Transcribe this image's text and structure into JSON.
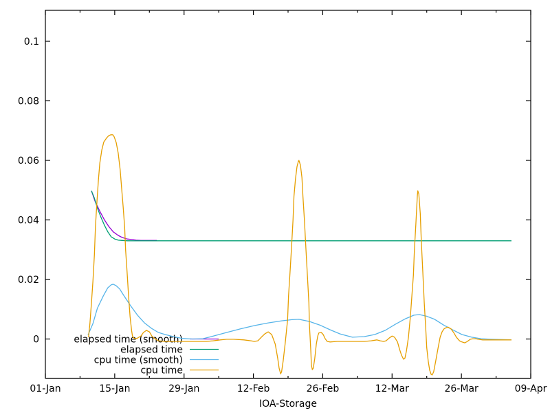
{
  "app": {
    "background": "#ffffff",
    "text_color": "#000000",
    "border_color": "#000000"
  },
  "chart_data": {
    "type": "line",
    "title": "",
    "xlabel": "IOA-Storage",
    "ylabel": "",
    "grid": false,
    "x_axis": {
      "unit": "date",
      "tick_labels": [
        "01-Jan",
        "15-Jan",
        "29-Jan",
        "12-Feb",
        "26-Feb",
        "12-Mar",
        "26-Mar",
        "09-Apr"
      ],
      "tick_days": [
        0,
        14,
        28,
        42,
        56,
        70,
        84,
        98
      ],
      "minor_tick_days": [
        7,
        21,
        35,
        49,
        63,
        77,
        91
      ],
      "range_days": [
        0,
        98
      ]
    },
    "y_axis": {
      "tick_labels": [
        "0",
        "0.02",
        "0.04",
        "0.06",
        "0.08",
        "0.1"
      ],
      "tick_values": [
        0,
        0.02,
        0.04,
        0.06,
        0.08,
        0.1
      ],
      "range": [
        -0.01318,
        0.1104
      ]
    },
    "legend": {
      "position": "inside-bottom-left",
      "entries": [
        "elapsed time (smooth)",
        "elapsed time",
        "cpu time (smooth)",
        "cpu time"
      ]
    },
    "series": [
      {
        "name": "elapsed time (smooth)",
        "color": "#9400D3",
        "points": [
          [
            9.3,
            0.0498
          ],
          [
            10.0,
            0.0464
          ],
          [
            11.0,
            0.0429
          ],
          [
            11.9,
            0.0401
          ],
          [
            12.8,
            0.0378
          ],
          [
            13.7,
            0.036
          ],
          [
            14.7,
            0.0348
          ],
          [
            15.5,
            0.0341
          ],
          [
            16.5,
            0.0336
          ],
          [
            17.5,
            0.0334
          ],
          [
            18.3,
            0.0332
          ],
          [
            19.3,
            0.0331
          ],
          [
            20.7,
            0.0331
          ],
          [
            22.5,
            0.0331
          ]
        ]
      },
      {
        "name": "elapsed time",
        "color": "#009E73",
        "points": [
          [
            9.3,
            0.0498
          ],
          [
            9.9,
            0.0473
          ],
          [
            10.5,
            0.044
          ],
          [
            11.2,
            0.041
          ],
          [
            11.9,
            0.0383
          ],
          [
            12.6,
            0.036
          ],
          [
            13.3,
            0.0343
          ],
          [
            14.0,
            0.0336
          ],
          [
            14.7,
            0.0332
          ],
          [
            15.5,
            0.0331
          ],
          [
            16.5,
            0.033
          ],
          [
            18.0,
            0.033
          ],
          [
            25.0,
            0.033
          ],
          [
            94.1,
            0.033
          ]
        ]
      },
      {
        "name": "cpu time (smooth)",
        "color": "#56B4E9",
        "points": [
          [
            8.6,
            0.0013
          ],
          [
            9.6,
            0.0052
          ],
          [
            10.5,
            0.0103
          ],
          [
            11.7,
            0.0145
          ],
          [
            12.6,
            0.0172
          ],
          [
            13.3,
            0.0182
          ],
          [
            13.7,
            0.0184
          ],
          [
            14.3,
            0.0179
          ],
          [
            15.0,
            0.0168
          ],
          [
            15.8,
            0.0147
          ],
          [
            17.2,
            0.0112
          ],
          [
            18.6,
            0.008
          ],
          [
            20.0,
            0.0054
          ],
          [
            21.4,
            0.0036
          ],
          [
            22.8,
            0.0022
          ],
          [
            24.2,
            0.0015
          ],
          [
            25.8,
            0.0008
          ],
          [
            27.6,
            0.0002
          ],
          [
            29.7,
            0.0
          ],
          [
            31.8,
            0.0001
          ],
          [
            33.9,
            0.001
          ],
          [
            36.6,
            0.0022
          ],
          [
            39.4,
            0.0034
          ],
          [
            42.2,
            0.0045
          ],
          [
            45.0,
            0.0054
          ],
          [
            47.7,
            0.0061
          ],
          [
            49.8,
            0.0065
          ],
          [
            51.2,
            0.0066
          ],
          [
            53.3,
            0.0059
          ],
          [
            55.4,
            0.0047
          ],
          [
            57.5,
            0.0031
          ],
          [
            59.5,
            0.0017
          ],
          [
            62.0,
            0.0006
          ],
          [
            64.4,
            0.0008
          ],
          [
            66.5,
            0.0015
          ],
          [
            68.6,
            0.0029
          ],
          [
            70.7,
            0.005
          ],
          [
            72.7,
            0.0068
          ],
          [
            74.4,
            0.008
          ],
          [
            75.5,
            0.0082
          ],
          [
            76.9,
            0.0077
          ],
          [
            78.6,
            0.0066
          ],
          [
            80.4,
            0.0047
          ],
          [
            82.2,
            0.0031
          ],
          [
            84.1,
            0.0015
          ],
          [
            86.1,
            0.0006
          ],
          [
            88.0,
            0.0001
          ],
          [
            90.1,
            -0.0001
          ],
          [
            94.1,
            -0.0003
          ]
        ]
      },
      {
        "name": "cpu time",
        "color": "#E69F00",
        "points": [
          [
            8.7,
            0.0006
          ],
          [
            9.0,
            0.0052
          ],
          [
            9.3,
            0.0121
          ],
          [
            9.6,
            0.0195
          ],
          [
            9.9,
            0.0283
          ],
          [
            10.1,
            0.0376
          ],
          [
            10.4,
            0.0457
          ],
          [
            10.7,
            0.0533
          ],
          [
            11.0,
            0.0591
          ],
          [
            11.4,
            0.0635
          ],
          [
            11.8,
            0.0662
          ],
          [
            12.4,
            0.0676
          ],
          [
            12.8,
            0.0683
          ],
          [
            13.2,
            0.0686
          ],
          [
            13.6,
            0.0686
          ],
          [
            13.9,
            0.0679
          ],
          [
            14.3,
            0.066
          ],
          [
            14.7,
            0.0625
          ],
          [
            15.1,
            0.0568
          ],
          [
            15.4,
            0.0507
          ],
          [
            15.7,
            0.0445
          ],
          [
            16.0,
            0.0376
          ],
          [
            16.2,
            0.0299
          ],
          [
            16.5,
            0.0223
          ],
          [
            16.8,
            0.0145
          ],
          [
            17.1,
            0.0075
          ],
          [
            17.4,
            0.0029
          ],
          [
            17.6,
            0.0008
          ],
          [
            18.0,
            0.0001
          ],
          [
            18.6,
            0.0003
          ],
          [
            19.3,
            0.001
          ],
          [
            19.8,
            0.0022
          ],
          [
            20.4,
            0.0029
          ],
          [
            21.0,
            0.0024
          ],
          [
            21.5,
            0.001
          ],
          [
            22.1,
            0.0001
          ],
          [
            22.8,
            -0.0006
          ],
          [
            24.2,
            -0.0008
          ],
          [
            26.9,
            -0.0008
          ],
          [
            29.7,
            -0.0008
          ],
          [
            32.5,
            -0.0008
          ],
          [
            33.9,
            -0.0006
          ],
          [
            35.3,
            -0.0003
          ],
          [
            36.6,
            -0.0001
          ],
          [
            38.0,
            -0.0001
          ],
          [
            40.1,
            -0.0003
          ],
          [
            41.5,
            -0.0006
          ],
          [
            42.2,
            -0.0008
          ],
          [
            42.9,
            -0.0006
          ],
          [
            43.6,
            0.0006
          ],
          [
            44.3,
            0.0017
          ],
          [
            45.0,
            0.0024
          ],
          [
            45.7,
            0.0015
          ],
          [
            46.4,
            -0.0017
          ],
          [
            46.9,
            -0.0064
          ],
          [
            47.2,
            -0.0098
          ],
          [
            47.5,
            -0.0117
          ],
          [
            47.7,
            -0.011
          ],
          [
            48.0,
            -0.0075
          ],
          [
            48.4,
            -0.0017
          ],
          [
            48.9,
            0.0064
          ],
          [
            49.1,
            0.0145
          ],
          [
            49.4,
            0.0225
          ],
          [
            49.7,
            0.0306
          ],
          [
            50.0,
            0.0399
          ],
          [
            50.2,
            0.048
          ],
          [
            50.5,
            0.0538
          ],
          [
            50.8,
            0.0579
          ],
          [
            51.1,
            0.0598
          ],
          [
            51.2,
            0.06
          ],
          [
            51.5,
            0.0584
          ],
          [
            51.8,
            0.0542
          ],
          [
            52.0,
            0.048
          ],
          [
            52.3,
            0.0399
          ],
          [
            52.6,
            0.0306
          ],
          [
            52.9,
            0.0214
          ],
          [
            53.2,
            0.0121
          ],
          [
            53.3,
            0.0052
          ],
          [
            53.6,
            -0.004
          ],
          [
            53.7,
            -0.0087
          ],
          [
            53.9,
            -0.0103
          ],
          [
            54.1,
            -0.0098
          ],
          [
            54.4,
            -0.0064
          ],
          [
            54.7,
            -0.0017
          ],
          [
            55.0,
            0.001
          ],
          [
            55.2,
            0.002
          ],
          [
            55.7,
            0.0022
          ],
          [
            56.1,
            0.0015
          ],
          [
            56.5,
            0.0001
          ],
          [
            56.9,
            -0.0008
          ],
          [
            57.5,
            -0.001
          ],
          [
            58.9,
            -0.0008
          ],
          [
            61.6,
            -0.0008
          ],
          [
            64.4,
            -0.0008
          ],
          [
            65.8,
            -0.0006
          ],
          [
            66.9,
            -0.0003
          ],
          [
            67.6,
            -0.0006
          ],
          [
            68.3,
            -0.0008
          ],
          [
            68.8,
            -0.0006
          ],
          [
            69.4,
            0.0003
          ],
          [
            70.0,
            0.001
          ],
          [
            70.5,
            0.0006
          ],
          [
            71.1,
            -0.001
          ],
          [
            71.5,
            -0.0034
          ],
          [
            71.9,
            -0.0054
          ],
          [
            72.3,
            -0.0068
          ],
          [
            72.6,
            -0.0064
          ],
          [
            72.9,
            -0.004
          ],
          [
            73.3,
            0.0006
          ],
          [
            73.7,
            0.0075
          ],
          [
            74.0,
            0.0145
          ],
          [
            74.3,
            0.0214
          ],
          [
            74.5,
            0.0295
          ],
          [
            74.8,
            0.0387
          ],
          [
            75.1,
            0.048
          ],
          [
            75.2,
            0.0498
          ],
          [
            75.4,
            0.0487
          ],
          [
            75.7,
            0.0422
          ],
          [
            75.9,
            0.0329
          ],
          [
            76.2,
            0.0225
          ],
          [
            76.5,
            0.0121
          ],
          [
            76.8,
            0.0034
          ],
          [
            77.0,
            -0.0029
          ],
          [
            77.3,
            -0.0075
          ],
          [
            77.6,
            -0.0105
          ],
          [
            77.9,
            -0.0119
          ],
          [
            78.1,
            -0.0121
          ],
          [
            78.4,
            -0.011
          ],
          [
            78.8,
            -0.0075
          ],
          [
            79.3,
            -0.0029
          ],
          [
            79.7,
            0.0006
          ],
          [
            80.1,
            0.0024
          ],
          [
            80.5,
            0.0034
          ],
          [
            80.9,
            0.0038
          ],
          [
            81.3,
            0.004
          ],
          [
            81.9,
            0.0034
          ],
          [
            82.5,
            0.002
          ],
          [
            83.0,
            0.0006
          ],
          [
            83.6,
            -0.0006
          ],
          [
            84.1,
            -0.001
          ],
          [
            84.7,
            -0.0013
          ],
          [
            85.2,
            -0.0008
          ],
          [
            85.8,
            -0.0001
          ],
          [
            86.3,
            0.0001
          ],
          [
            86.9,
            0.0001
          ],
          [
            87.4,
            -0.0001
          ],
          [
            88.3,
            -0.0003
          ],
          [
            94.1,
            -0.0003
          ]
        ]
      }
    ]
  }
}
